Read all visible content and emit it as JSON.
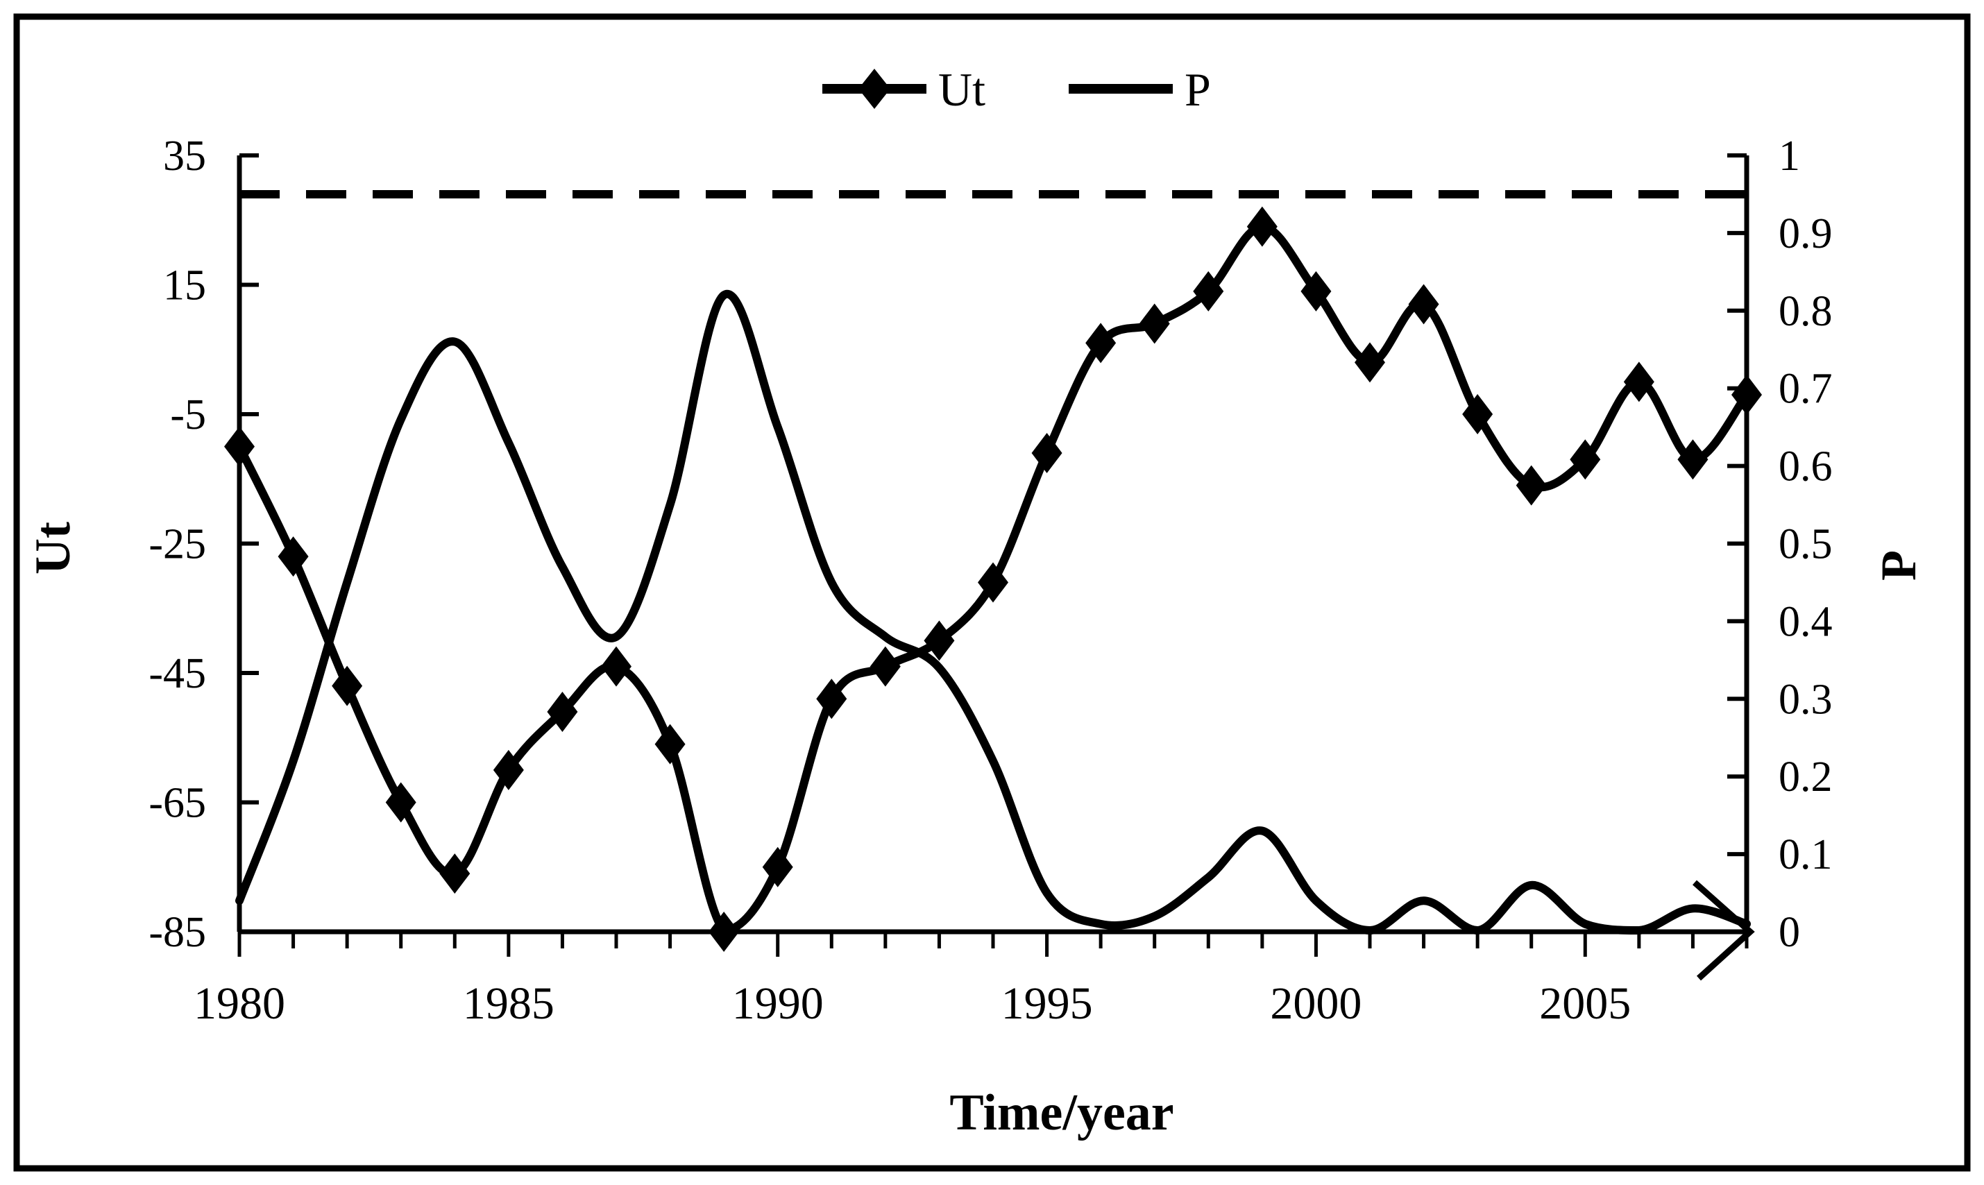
{
  "figure": {
    "background": "#ffffff",
    "ink_color": "#000000",
    "border": "black rectangular frame"
  },
  "chart_data": {
    "type": "line",
    "title": "",
    "xlabel": "Time/year",
    "ylabel_left": "Ut",
    "ylabel_right": "P",
    "grid": false,
    "legend_position": "top-center",
    "legend": [
      {
        "label": "Ut",
        "swatch": "line-with-diamond-marker"
      },
      {
        "label": "P",
        "swatch": "plain-line"
      }
    ],
    "x": [
      1980,
      1981,
      1982,
      1983,
      1984,
      1985,
      1986,
      1987,
      1988,
      1989,
      1990,
      1991,
      1992,
      1993,
      1994,
      1995,
      1996,
      1997,
      1998,
      1999,
      2000,
      2001,
      2002,
      2003,
      2004,
      2005,
      2006,
      2007,
      2008
    ],
    "x_tick_labels": [
      "1980",
      "1985",
      "1990",
      "1995",
      "2000",
      "2005"
    ],
    "x_tick_label_years": [
      1980,
      1985,
      1990,
      1995,
      2000,
      2005
    ],
    "left_axis": {
      "label": "Ut",
      "min": -85,
      "max": 35,
      "ticks": [
        35,
        15,
        -5,
        -25,
        -45,
        -65,
        -85
      ],
      "tick_labels": [
        "35",
        "15",
        "-5",
        "-25",
        "-45",
        "-65",
        "-85"
      ]
    },
    "right_axis": {
      "label": "P",
      "min": 0,
      "max": 1,
      "ticks": [
        1,
        0.9,
        0.8,
        0.7,
        0.6,
        0.5,
        0.4,
        0.3,
        0.2,
        0.1,
        0
      ],
      "tick_labels": [
        "1",
        "0.9",
        "0.8",
        "0.7",
        "0.6",
        "0.5",
        "0.4",
        "0.3",
        "0.2",
        "0.1",
        "0"
      ]
    },
    "reference_line": {
      "axis": "right",
      "value": 0.95,
      "style": "dashed",
      "label": ""
    },
    "series": [
      {
        "name": "Ut",
        "axis": "left",
        "marker": "diamond",
        "line_style": "solid",
        "values": [
          -10,
          -27,
          -47,
          -65,
          -76,
          -60,
          -51,
          -44,
          -56,
          -85,
          -75,
          -49,
          -44,
          -40,
          -31,
          -11,
          6,
          9,
          14,
          24,
          14,
          3,
          12,
          -5,
          -16,
          -12,
          0,
          -12,
          -2
        ]
      },
      {
        "name": "P",
        "axis": "right",
        "marker": "none",
        "line_style": "solid",
        "values": [
          0.04,
          0.22,
          0.45,
          0.66,
          0.76,
          0.63,
          0.47,
          0.38,
          0.55,
          0.82,
          0.65,
          0.45,
          0.38,
          0.34,
          0.22,
          0.05,
          0.01,
          0.02,
          0.07,
          0.13,
          0.04,
          0.0,
          0.04,
          0.0,
          0.06,
          0.01,
          0.0,
          0.03,
          0.01
        ]
      }
    ]
  }
}
